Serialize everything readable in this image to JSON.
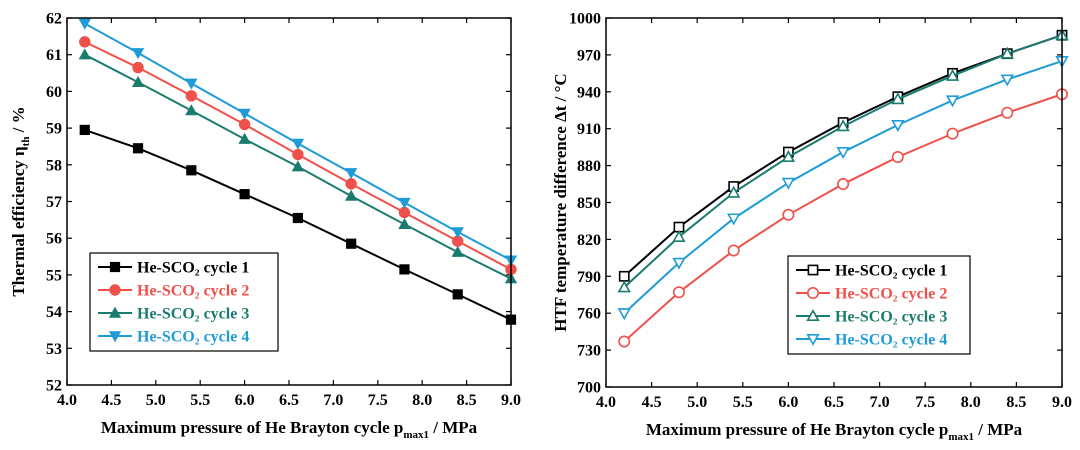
{
  "chart_data": [
    {
      "type": "line",
      "x": [
        4.2,
        4.8,
        5.4,
        6.0,
        6.6,
        7.2,
        7.8,
        8.4,
        9.0
      ],
      "xlim": [
        4.0,
        9.0
      ],
      "xticks": [
        "4.0",
        "4.5",
        "5.0",
        "5.5",
        "6.0",
        "6.5",
        "7.0",
        "7.5",
        "8.0",
        "8.5",
        "9.0"
      ],
      "ylim": [
        52,
        62
      ],
      "yticks": [
        "52",
        "53",
        "54",
        "55",
        "56",
        "57",
        "58",
        "59",
        "60",
        "61",
        "62"
      ],
      "xlabel": "Maximum pressure of He Brayton cycle p",
      "xlabel_sub": "max1",
      "xlabel_unit": " / MPa",
      "ylabel": "Thermal efficiency η",
      "ylabel_sub": "th",
      "ylabel_unit": " / %",
      "legend_position": "bottom-left",
      "series": [
        {
          "name": "He-SCO₂ cycle 1",
          "color": "#000000",
          "text_color": "#000000",
          "marker": "square",
          "filled": true,
          "values": [
            58.95,
            58.45,
            57.85,
            57.2,
            56.55,
            55.85,
            55.15,
            54.47,
            53.78
          ]
        },
        {
          "name": "He-SCO₂ cycle 2",
          "color": "#f0504a",
          "text_color": "#f0504a",
          "marker": "circle",
          "filled": true,
          "values": [
            61.35,
            60.65,
            59.88,
            59.1,
            58.28,
            57.48,
            56.7,
            55.92,
            55.15
          ]
        },
        {
          "name": "He-SCO₂ cycle 3",
          "color": "#1a7c6e",
          "text_color": "#1a7c6e",
          "marker": "triangle-up",
          "filled": true,
          "values": [
            61.0,
            60.25,
            59.48,
            58.7,
            57.95,
            57.15,
            56.38,
            55.62,
            54.9
          ]
        },
        {
          "name": "He-SCO₂ cycle 4",
          "color": "#1f9bd6",
          "text_color": "#1f9bd6",
          "marker": "triangle-down",
          "filled": true,
          "values": [
            61.85,
            61.05,
            60.22,
            59.4,
            58.58,
            57.78,
            56.97,
            56.17,
            55.4
          ]
        }
      ]
    },
    {
      "type": "line",
      "x": [
        4.2,
        4.8,
        5.4,
        6.0,
        6.6,
        7.2,
        7.8,
        8.4,
        9.0
      ],
      "xlim": [
        4.0,
        9.0
      ],
      "xticks": [
        "4.0",
        "4.5",
        "5.0",
        "5.5",
        "6.0",
        "6.5",
        "7.0",
        "7.5",
        "8.0",
        "8.5",
        "9.0"
      ],
      "ylim": [
        700,
        1000
      ],
      "yticks": [
        "700",
        "730",
        "760",
        "790",
        "820",
        "850",
        "880",
        "910",
        "940",
        "970",
        "1000"
      ],
      "xlabel": "Maximum pressure of He Brayton cycle p",
      "xlabel_sub": "max1",
      "xlabel_unit": " / MPa",
      "ylabel": "HTF temperature difference Δt / °C",
      "legend_position": "bottom-right",
      "series": [
        {
          "name": "He-SCO₂ cycle 1",
          "color": "#000000",
          "text_color": "#000000",
          "marker": "square",
          "filled": false,
          "values": [
            790,
            830,
            863,
            891,
            915,
            936,
            955,
            971,
            986
          ]
        },
        {
          "name": "He-SCO₂ cycle 2",
          "color": "#f0504a",
          "text_color": "#f0504a",
          "marker": "circle",
          "filled": false,
          "values": [
            737,
            777,
            811,
            840,
            865,
            887,
            906,
            923,
            938
          ]
        },
        {
          "name": "He-SCO₂ cycle 3",
          "color": "#1a7c6e",
          "text_color": "#1a7c6e",
          "marker": "triangle-up",
          "filled": false,
          "values": [
            781,
            822,
            858,
            887,
            912,
            934,
            953,
            971,
            986
          ]
        },
        {
          "name": "He-SCO₂ cycle 4",
          "color": "#1f9bd6",
          "text_color": "#1f9bd6",
          "marker": "triangle-down",
          "filled": false,
          "values": [
            760,
            801,
            837,
            866,
            891,
            913,
            933,
            950,
            965
          ]
        }
      ]
    }
  ]
}
